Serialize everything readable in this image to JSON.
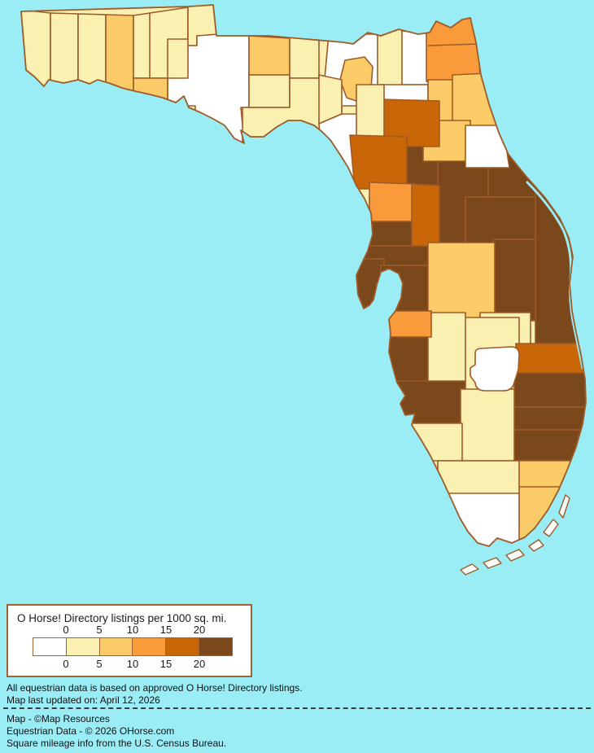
{
  "legend": {
    "title": "O Horse! Directory listings per 1000 sq. mi.",
    "ticks_top": [
      "0",
      "5",
      "10",
      "15",
      "20"
    ],
    "ticks_bottom": [
      "0",
      "5",
      "10",
      "15",
      "20"
    ],
    "swatch_colors": [
      "#FFFFFF",
      "#FAF0B2",
      "#FBCB68",
      "#F99B3B",
      "#C96607",
      "#7B481C"
    ],
    "box_border_color": "#A0622E",
    "box_background": "#FFFFFF"
  },
  "map": {
    "water_color": "#9AEDF5",
    "county_border_color": "#9E5B28",
    "coastline_color": "#9E5B28"
  },
  "notes": {
    "line1": "All equestrian data is based on approved O Horse! Directory listings.",
    "line2": "Map last updated on: April 12, 2026"
  },
  "credits": {
    "line1": "Map - ©Map Resources",
    "line2": "Equestrian Data - © 2026 OHorse.com",
    "line3": "Square mileage info from the U.S. Census Bureau."
  }
}
